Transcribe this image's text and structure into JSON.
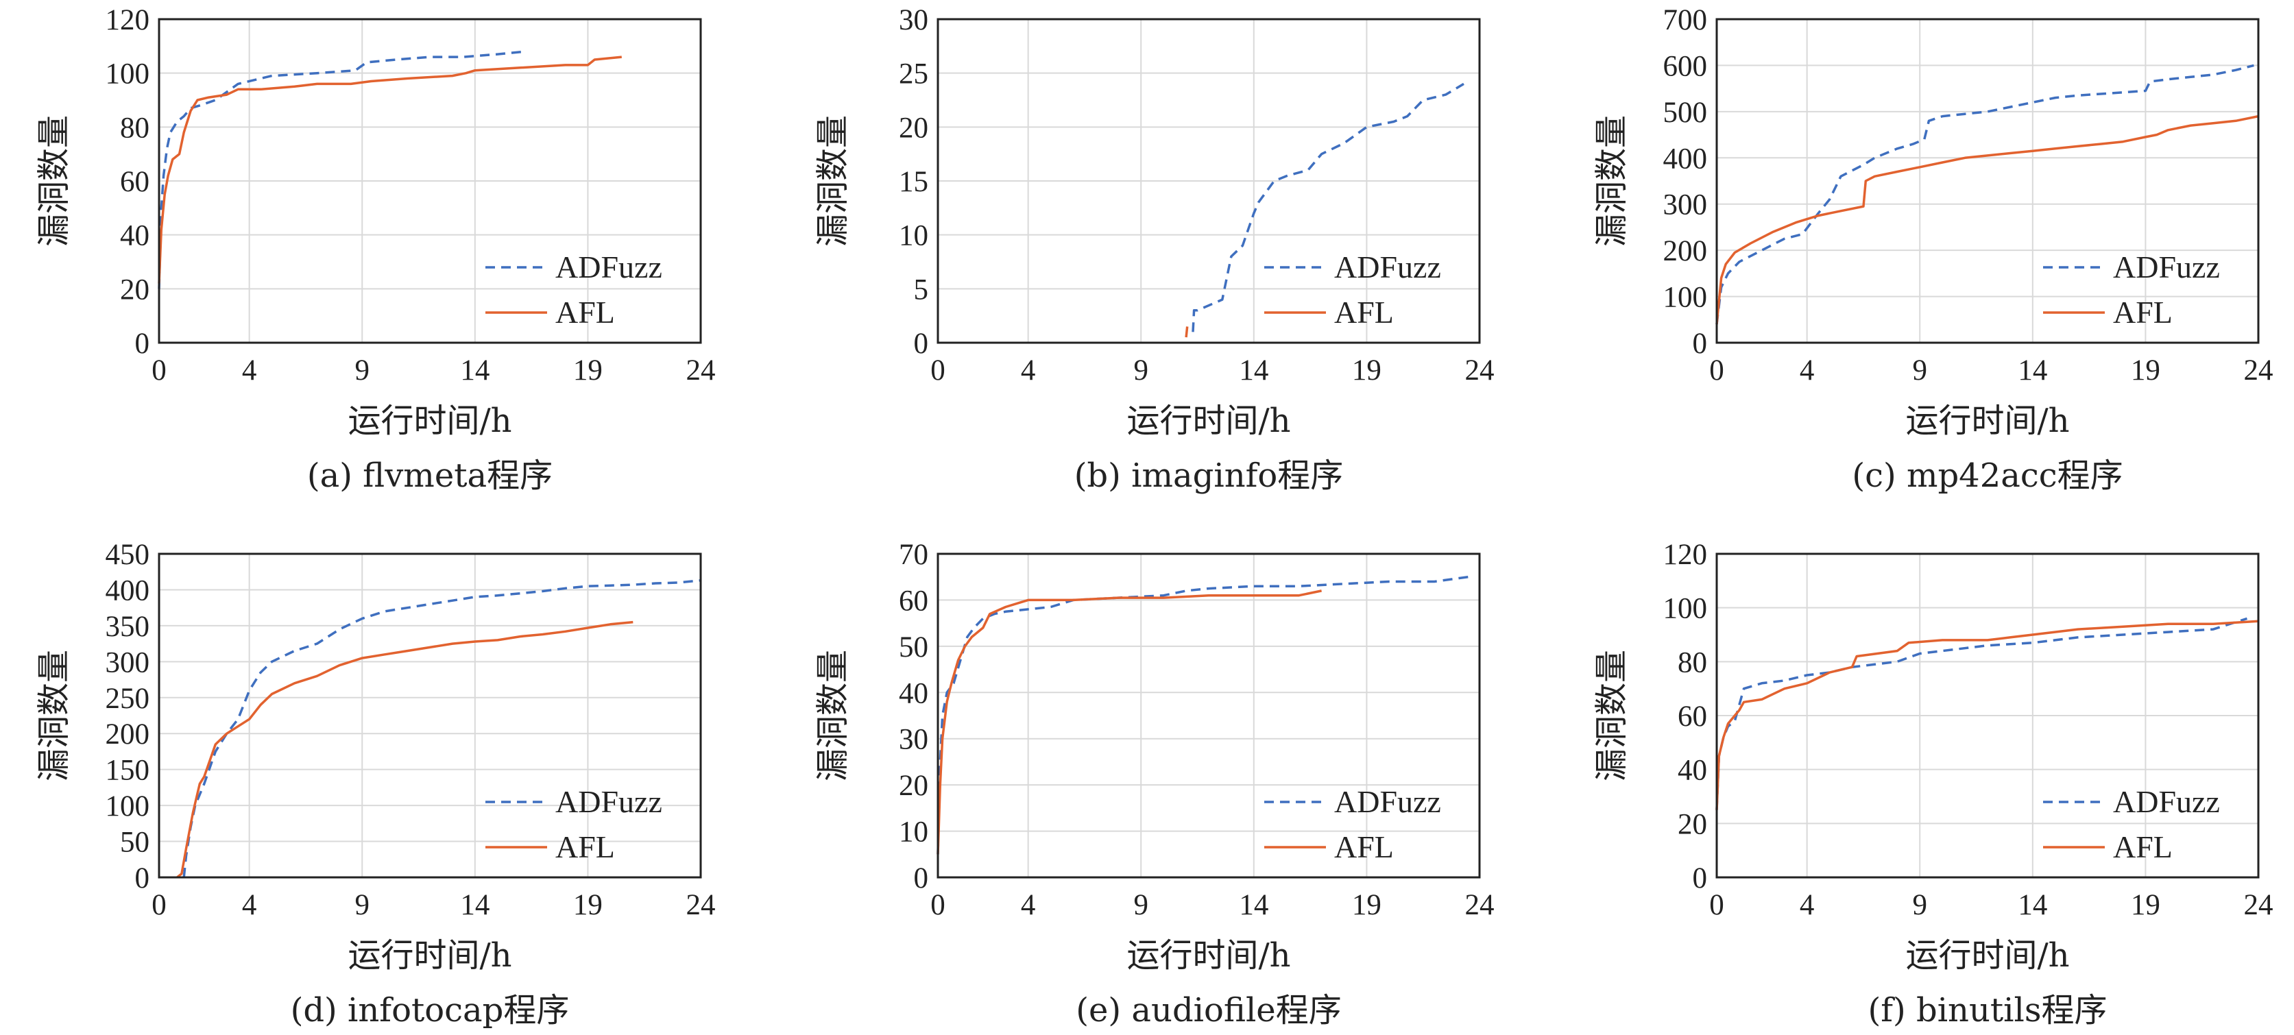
{
  "colors": {
    "ADFuzz": "#3f6fbf",
    "AFL": "#e2622f"
  },
  "chart_data": [
    {
      "type": "line",
      "caption": "(a) flvmeta程序",
      "xlabel": "运行时间/h",
      "ylabel": "漏洞数量",
      "xlim": [
        0,
        24
      ],
      "ylim": [
        0,
        120
      ],
      "xticks": [
        0,
        4,
        9,
        14,
        19,
        24
      ],
      "yticks": [
        0,
        20,
        40,
        60,
        80,
        100,
        120
      ],
      "legend": "bottom-right",
      "grid": true,
      "series": [
        {
          "name": "ADFuzz",
          "x": [
            0,
            0.1,
            0.2,
            0.35,
            0.5,
            0.8,
            1.1,
            1.4,
            1.8,
            2.5,
            3.0,
            3.5,
            5,
            7,
            8.7,
            9.2,
            10.5,
            12,
            13.5,
            15,
            16.2
          ],
          "y": [
            20,
            50,
            62,
            72,
            78,
            82,
            84,
            87,
            88,
            90,
            93,
            96,
            99,
            100,
            101,
            104,
            105,
            106,
            106,
            107,
            108
          ]
        },
        {
          "name": "AFL",
          "x": [
            0,
            0.1,
            0.25,
            0.4,
            0.6,
            0.9,
            1.1,
            1.4,
            1.7,
            2.2,
            3.0,
            3.5,
            4.5,
            6,
            7,
            8.5,
            9.4,
            11,
            13,
            13.6,
            14,
            16,
            18,
            19,
            19.3,
            20.5
          ],
          "y": [
            22,
            42,
            55,
            62,
            68,
            70,
            78,
            86,
            90,
            91,
            92,
            94,
            94,
            95,
            96,
            96,
            97,
            98,
            99,
            100,
            101,
            102,
            103,
            103,
            105,
            106
          ]
        }
      ]
    },
    {
      "type": "line",
      "caption": "(b) imaginfo程序",
      "xlabel": "运行时间/h",
      "ylabel": "漏洞数量",
      "xlim": [
        0,
        24
      ],
      "ylim": [
        0,
        30
      ],
      "xticks": [
        0,
        4,
        9,
        14,
        19,
        24
      ],
      "yticks": [
        0,
        5,
        10,
        15,
        20,
        25,
        30
      ],
      "legend": "bottom-right",
      "grid": true,
      "series": [
        {
          "name": "ADFuzz",
          "x": [
            11.3,
            11.35,
            11.5,
            12.6,
            12.8,
            13.0,
            13.5,
            14.0,
            14.2,
            14.9,
            15.5,
            16.4,
            17.0,
            18.0,
            19.0,
            20.2,
            20.8,
            21.5,
            22.5,
            23.3
          ],
          "y": [
            1,
            3,
            3,
            4,
            6,
            8,
            9,
            12,
            13,
            15,
            15.5,
            16,
            17.5,
            18.5,
            20,
            20.5,
            21,
            22.5,
            23,
            24
          ]
        },
        {
          "name": "AFL",
          "x": [
            11.0,
            11.05
          ],
          "y": [
            0.5,
            1.5
          ]
        }
      ]
    },
    {
      "type": "line",
      "caption": "(c) mp42acc程序",
      "xlabel": "运行时间/h",
      "ylabel": "漏洞数量",
      "xlim": [
        0,
        24
      ],
      "ylim": [
        0,
        700
      ],
      "xticks": [
        0,
        4,
        9,
        14,
        19,
        24
      ],
      "yticks": [
        0,
        100,
        200,
        300,
        400,
        500,
        600,
        700
      ],
      "legend": "bottom-right",
      "grid": true,
      "series": [
        {
          "name": "ADFuzz",
          "x": [
            0,
            0.2,
            0.5,
            1,
            2,
            3,
            3.8,
            4.5,
            5.0,
            5.5,
            6.5,
            7,
            8,
            8.7,
            9.2,
            9.4,
            10,
            11,
            12,
            13,
            14,
            15,
            16,
            17.5,
            19,
            19.2,
            20,
            21,
            22,
            23,
            23.8
          ],
          "y": [
            40,
            120,
            150,
            175,
            200,
            225,
            235,
            280,
            310,
            360,
            385,
            400,
            420,
            430,
            440,
            480,
            490,
            495,
            500,
            510,
            520,
            530,
            535,
            540,
            545,
            565,
            570,
            575,
            580,
            590,
            600
          ]
        },
        {
          "name": "AFL",
          "x": [
            0,
            0.2,
            0.4,
            0.8,
            1.5,
            2.5,
            3.5,
            4.5,
            5.5,
            6.5,
            6.6,
            7,
            8,
            9,
            10,
            11,
            12,
            13,
            14,
            15,
            16,
            17,
            18,
            19,
            19.5,
            20,
            21,
            22,
            23,
            24
          ],
          "y": [
            40,
            140,
            170,
            195,
            215,
            240,
            260,
            275,
            285,
            295,
            350,
            360,
            370,
            380,
            390,
            400,
            405,
            410,
            415,
            420,
            425,
            430,
            435,
            445,
            450,
            460,
            470,
            475,
            480,
            490
          ]
        }
      ]
    },
    {
      "type": "line",
      "caption": "(d) infotocap程序",
      "xlabel": "运行时间/h",
      "ylabel": "漏洞数量",
      "xlim": [
        0,
        24
      ],
      "ylim": [
        0,
        450
      ],
      "xticks": [
        0,
        4,
        9,
        14,
        19,
        24
      ],
      "yticks": [
        0,
        50,
        100,
        150,
        200,
        250,
        300,
        350,
        400,
        450
      ],
      "legend": "bottom-right",
      "grid": true,
      "series": [
        {
          "name": "ADFuzz",
          "x": [
            1.1,
            1.2,
            1.4,
            1.6,
            2.0,
            2.5,
            3.0,
            3.5,
            4,
            4.5,
            5,
            6,
            7,
            8,
            9,
            10,
            11,
            12,
            13,
            14,
            15,
            16,
            17,
            18,
            19,
            20,
            21,
            22,
            23,
            24
          ],
          "y": [
            0,
            30,
            70,
            100,
            130,
            175,
            200,
            220,
            260,
            285,
            300,
            315,
            325,
            345,
            360,
            370,
            375,
            380,
            385,
            390,
            392,
            395,
            398,
            402,
            405,
            406,
            407,
            409,
            410,
            413
          ]
        },
        {
          "name": "AFL",
          "x": [
            0.8,
            1.0,
            1.2,
            1.5,
            1.8,
            2.0,
            2.5,
            3,
            3.5,
            4,
            4.5,
            5,
            6,
            7,
            8,
            9,
            10,
            11,
            12,
            13,
            14,
            15,
            16,
            17,
            18,
            19,
            20,
            21
          ],
          "y": [
            0,
            5,
            40,
            90,
            130,
            140,
            185,
            200,
            210,
            220,
            240,
            255,
            270,
            280,
            295,
            305,
            310,
            315,
            320,
            325,
            328,
            330,
            335,
            338,
            342,
            347,
            352,
            355
          ]
        }
      ]
    },
    {
      "type": "line",
      "caption": "(e) audiofile程序",
      "xlabel": "运行时间/h",
      "ylabel": "漏洞数量",
      "xlim": [
        0,
        24
      ],
      "ylim": [
        0,
        70
      ],
      "xticks": [
        0,
        4,
        9,
        14,
        19,
        24
      ],
      "yticks": [
        0,
        10,
        20,
        30,
        40,
        50,
        60,
        70
      ],
      "legend": "bottom-right",
      "grid": true,
      "series": [
        {
          "name": "ADFuzz",
          "x": [
            0,
            0.1,
            0.2,
            0.4,
            0.7,
            1.0,
            1.3,
            1.6,
            2.0,
            2.5,
            3,
            4,
            5,
            6,
            8,
            10,
            11,
            12,
            14,
            16,
            18,
            20,
            22,
            23.5
          ],
          "y": [
            5,
            25,
            35,
            40,
            42,
            47,
            52,
            54,
            56,
            57,
            57.5,
            58,
            58.5,
            60,
            60.5,
            61,
            62,
            62.5,
            63,
            63,
            63.5,
            64,
            64,
            65
          ]
        },
        {
          "name": "AFL",
          "x": [
            0,
            0.1,
            0.2,
            0.4,
            0.6,
            0.9,
            1.2,
            1.5,
            2.0,
            2.3,
            3,
            4,
            6,
            8,
            10,
            12,
            14,
            16,
            17
          ],
          "y": [
            5,
            20,
            30,
            38,
            42,
            47,
            50,
            52,
            54,
            57,
            58.5,
            60,
            60,
            60.5,
            60.5,
            61,
            61,
            61,
            62
          ]
        }
      ]
    },
    {
      "type": "line",
      "caption": "(f) binutils程序",
      "xlabel": "运行时间/h",
      "ylabel": "漏洞数量",
      "xlim": [
        0,
        24
      ],
      "ylim": [
        0,
        120
      ],
      "xticks": [
        0,
        4,
        9,
        14,
        19,
        24
      ],
      "yticks": [
        0,
        20,
        40,
        60,
        80,
        100,
        120
      ],
      "legend": "bottom-right",
      "grid": true,
      "series": [
        {
          "name": "ADFuzz",
          "x": [
            0,
            0.1,
            0.3,
            0.5,
            0.8,
            1.0,
            1.2,
            2,
            3,
            4,
            5,
            6,
            7,
            8,
            9,
            10,
            12,
            14,
            16,
            18,
            20,
            22,
            23.5
          ],
          "y": [
            25,
            45,
            52,
            56,
            58,
            64,
            70,
            72,
            73,
            75,
            76,
            78,
            79,
            80,
            83,
            84,
            86,
            87,
            89,
            90,
            91,
            92,
            96
          ]
        },
        {
          "name": "AFL",
          "x": [
            0,
            0.1,
            0.3,
            0.5,
            0.8,
            1.0,
            1.2,
            2,
            3,
            4,
            5,
            6,
            6.2,
            8,
            8.5,
            10,
            12,
            13,
            14,
            16,
            18,
            20,
            22,
            24
          ],
          "y": [
            25,
            45,
            52,
            57,
            60,
            62,
            65,
            66,
            70,
            72,
            76,
            78,
            82,
            84,
            87,
            88,
            88,
            89,
            90,
            92,
            93,
            94,
            94,
            95
          ]
        }
      ]
    }
  ]
}
